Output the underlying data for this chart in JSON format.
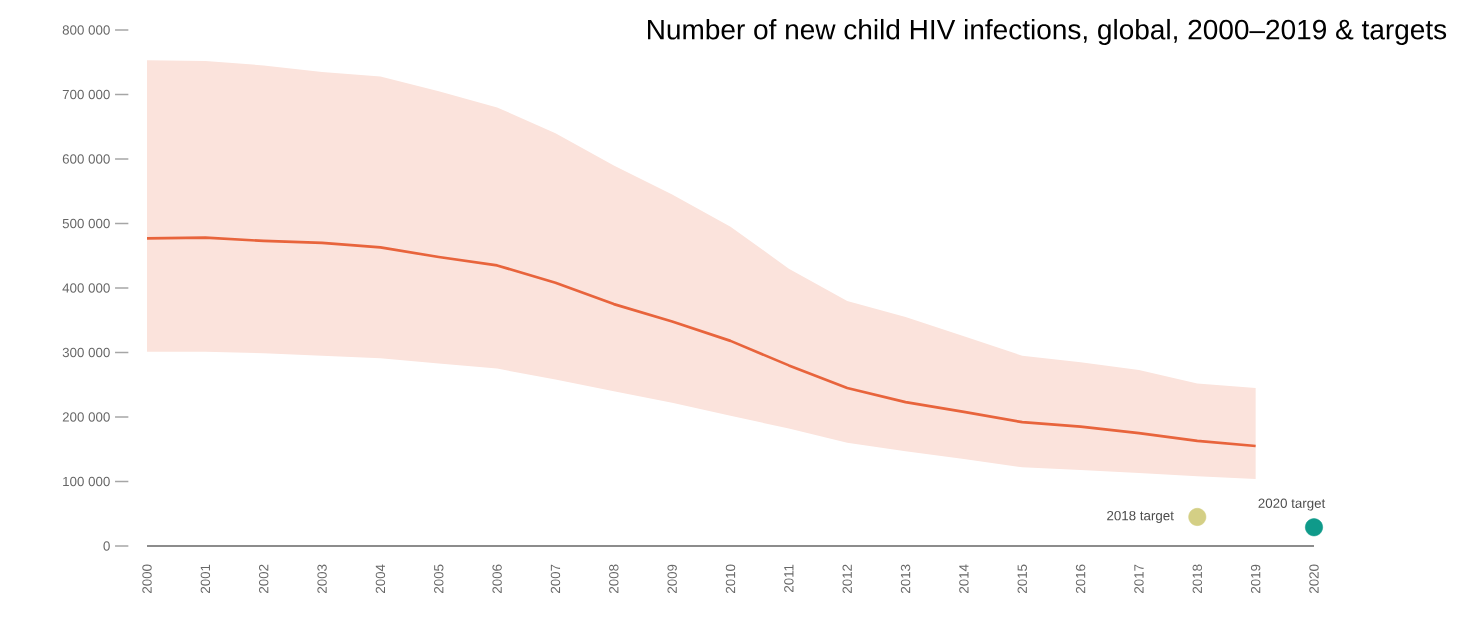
{
  "chart_data": {
    "type": "line",
    "title": "Number of new child HIV infections, global, 2000–2019 & targets",
    "x": [
      2000,
      2001,
      2002,
      2003,
      2004,
      2005,
      2006,
      2007,
      2008,
      2009,
      2010,
      2011,
      2012,
      2013,
      2014,
      2015,
      2016,
      2017,
      2018,
      2019
    ],
    "series": [
      {
        "color": "#e8643c",
        "values": [
          477000,
          478000,
          473000,
          470000,
          463000,
          448000,
          435000,
          408000,
          375000,
          348000,
          318000,
          280000,
          245000,
          223000,
          208000,
          192000,
          185000,
          175000,
          163000,
          155000
        ],
        "upper": [
          753000,
          752000,
          745000,
          735000,
          728000,
          705000,
          680000,
          640000,
          590000,
          545000,
          495000,
          430000,
          380000,
          355000,
          325000,
          295000,
          285000,
          273000,
          252000,
          245000
        ],
        "lower": [
          301000,
          301000,
          299000,
          295000,
          291000,
          283000,
          275000,
          258000,
          240000,
          222000,
          202000,
          182000,
          160000,
          147000,
          135000,
          122000,
          118000,
          113000,
          108000,
          104000
        ]
      },
      {
        "type": "scatter",
        "marker": "circle",
        "x": [
          2018,
          2020
        ],
        "values": [
          45000,
          29000
        ],
        "colors": [
          "#d4cf85",
          "#0f9a8a"
        ]
      }
    ],
    "xlim": [
      2000,
      2020
    ],
    "ylim": [
      0,
      800000
    ],
    "xticks": [
      2000,
      2001,
      2002,
      2003,
      2004,
      2005,
      2006,
      2007,
      2008,
      2009,
      2010,
      2011,
      2012,
      2013,
      2014,
      2015,
      2016,
      2017,
      2018,
      2019,
      2020
    ],
    "yticks": [
      {
        "value": 0,
        "label": "0"
      },
      {
        "value": 100000,
        "label": "100 000"
      },
      {
        "value": 200000,
        "label": "200 000"
      },
      {
        "value": 300000,
        "label": "300 000"
      },
      {
        "value": 400000,
        "label": "400 000"
      },
      {
        "value": 500000,
        "label": "500 000"
      },
      {
        "value": 600000,
        "label": "600 000"
      },
      {
        "value": 700000,
        "label": "700 000"
      },
      {
        "value": 800000,
        "label": "800 000"
      }
    ],
    "annotations": [
      {
        "text": "2018 target",
        "x": 2018,
        "y": 45000
      },
      {
        "text": "2020 target",
        "x": 2020,
        "y": 29000
      }
    ]
  }
}
